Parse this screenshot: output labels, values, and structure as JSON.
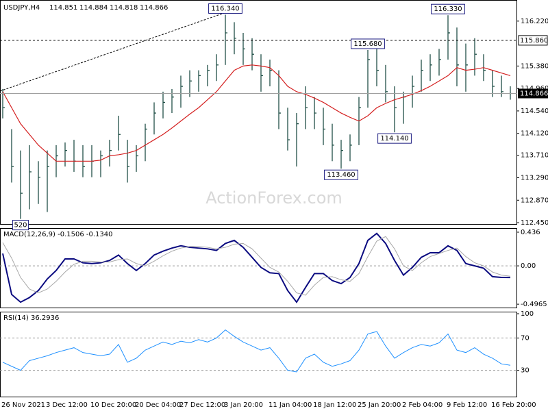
{
  "watermark": "ActionForex.com",
  "chart_data": [
    {
      "type": "hlc",
      "title": "USDJPY,H4",
      "header_values": [
        114.851,
        114.884,
        114.818,
        114.866
      ],
      "color": "#1f4f46",
      "high": [
        114.95,
        114.2,
        113.8,
        113.9,
        113.6,
        113.8,
        113.9,
        113.95,
        114.0,
        113.9,
        113.9,
        113.8,
        114.0,
        114.45,
        114.0,
        113.9,
        114.3,
        114.7,
        114.9,
        114.95,
        115.2,
        115.3,
        115.3,
        115.4,
        115.6,
        116.34,
        116.2,
        116.0,
        115.9,
        115.6,
        115.5,
        115.3,
        114.6,
        114.5,
        115.0,
        114.8,
        114.6,
        114.3,
        114.0,
        114.1,
        114.8,
        115.68,
        115.7,
        115.4,
        115.0,
        114.9,
        115.2,
        115.5,
        115.6,
        115.7,
        116.33,
        116.1,
        115.8,
        115.9,
        115.6,
        115.3,
        115.2,
        115.0
      ],
      "low": [
        114.4,
        113.2,
        112.52,
        112.7,
        112.8,
        112.65,
        113.3,
        113.5,
        113.4,
        113.3,
        113.3,
        113.3,
        113.5,
        113.8,
        113.2,
        113.4,
        113.6,
        114.1,
        114.4,
        114.5,
        114.6,
        114.8,
        114.9,
        115.0,
        115.1,
        115.4,
        115.6,
        115.4,
        115.3,
        114.9,
        115.0,
        114.2,
        113.8,
        113.5,
        114.2,
        114.2,
        113.9,
        113.6,
        113.46,
        113.6,
        113.9,
        114.6,
        115.0,
        114.7,
        114.14,
        114.3,
        114.6,
        114.9,
        115.1,
        115.2,
        115.5,
        115.0,
        114.9,
        115.2,
        115.1,
        114.8,
        114.8,
        114.75
      ],
      "close": [
        114.6,
        113.5,
        113.0,
        113.4,
        113.3,
        113.5,
        113.7,
        113.8,
        113.6,
        113.5,
        113.6,
        113.7,
        113.8,
        114.1,
        113.5,
        113.7,
        114.2,
        114.5,
        114.7,
        114.8,
        115.0,
        115.1,
        115.2,
        115.3,
        115.4,
        116.0,
        115.9,
        115.7,
        115.6,
        115.2,
        115.3,
        114.5,
        114.0,
        114.3,
        114.6,
        114.5,
        114.2,
        113.9,
        113.8,
        113.9,
        114.6,
        115.5,
        115.3,
        114.9,
        114.6,
        114.8,
        115.0,
        115.3,
        115.4,
        115.5,
        116.0,
        115.4,
        115.4,
        115.6,
        115.3,
        115.0,
        114.9,
        114.866
      ],
      "ma": {
        "color": "#d42020",
        "values": [
          114.9,
          114.6,
          114.3,
          114.1,
          113.9,
          113.75,
          113.6,
          113.6,
          113.6,
          113.6,
          113.6,
          113.62,
          113.7,
          113.72,
          113.75,
          113.8,
          113.9,
          114.0,
          114.1,
          114.22,
          114.35,
          114.48,
          114.6,
          114.75,
          114.9,
          115.1,
          115.3,
          115.38,
          115.4,
          115.38,
          115.35,
          115.2,
          115.0,
          114.9,
          114.85,
          114.78,
          114.7,
          114.6,
          114.5,
          114.42,
          114.35,
          114.45,
          114.6,
          114.68,
          114.75,
          114.8,
          114.85,
          114.92,
          115.0,
          115.1,
          115.2,
          115.35,
          115.3,
          115.32,
          115.35,
          115.3,
          115.25,
          115.2
        ]
      },
      "annotations": [
        {
          "value": 116.34,
          "label": "116.340"
        },
        {
          "value": 115.68,
          "label": "115.680"
        },
        {
          "value": 116.33,
          "label": "116.330"
        },
        {
          "value": 114.14,
          "label": "114.140"
        },
        {
          "value": 113.46,
          "label": "113.460"
        },
        {
          "value": 112.52,
          "label": "520"
        }
      ],
      "level": {
        "value": 115.86,
        "label": "115.860"
      },
      "current": {
        "value": 114.866,
        "label": "114.866"
      },
      "ylim": [
        112.425,
        116.602
      ],
      "yticks": [
        {
          "value": 116.22,
          "label": "116.220"
        },
        {
          "value": 115.38,
          "label": "115.380"
        },
        {
          "value": 114.96,
          "label": "114.960"
        },
        {
          "value": 114.54,
          "label": "114.540"
        },
        {
          "value": 114.12,
          "label": "114.120"
        },
        {
          "value": 113.71,
          "label": "113.710"
        },
        {
          "value": 113.29,
          "label": "113.290"
        },
        {
          "value": 112.87,
          "label": "112.870"
        },
        {
          "value": 112.45,
          "label": "112.450"
        }
      ]
    },
    {
      "type": "macd",
      "title": "MACD(12,26,9) -0.1506 -0.1340",
      "lines": [
        {
          "color": "#0a0a80",
          "values": [
            0.16,
            -0.37,
            -0.47,
            -0.41,
            -0.32,
            -0.17,
            -0.06,
            0.09,
            0.09,
            0.04,
            0.03,
            0.04,
            0.07,
            0.14,
            0.03,
            -0.06,
            0.03,
            0.14,
            0.19,
            0.23,
            0.26,
            0.24,
            0.23,
            0.22,
            0.2,
            0.29,
            0.33,
            0.24,
            0.11,
            -0.02,
            -0.09,
            -0.1,
            -0.32,
            -0.47,
            -0.28,
            -0.1,
            -0.1,
            -0.19,
            -0.23,
            -0.15,
            0.03,
            0.33,
            0.42,
            0.29,
            0.07,
            -0.12,
            -0.02,
            0.11,
            0.17,
            0.17,
            0.26,
            0.2,
            0.03,
            0,
            -0.03,
            -0.14,
            -0.15,
            -0.1506
          ]
        },
        {
          "color": "#a8a8a8",
          "values": [
            0.3,
            0.1,
            -0.15,
            -0.3,
            -0.35,
            -0.3,
            -0.2,
            -0.08,
            0.02,
            0.06,
            0.06,
            0.05,
            0.05,
            0.08,
            0.09,
            0.03,
            0.0,
            0.06,
            0.13,
            0.19,
            0.23,
            0.25,
            0.25,
            0.24,
            0.22,
            0.24,
            0.28,
            0.29,
            0.22,
            0.1,
            -0.02,
            -0.08,
            -0.2,
            -0.35,
            -0.38,
            -0.25,
            -0.15,
            -0.14,
            -0.18,
            -0.2,
            -0.1,
            0.12,
            0.32,
            0.38,
            0.22,
            0.0,
            -0.06,
            0.04,
            0.12,
            0.16,
            0.2,
            0.23,
            0.12,
            0.04,
            0.0,
            -0.08,
            -0.12,
            -0.134
          ]
        }
      ],
      "ylim": [
        -0.54,
        0.48
      ],
      "yticks": [
        0.436,
        {
          "value": 0,
          "label": "0.00"
        },
        -0.4965
      ],
      "levels": [
        0
      ]
    },
    {
      "type": "line",
      "title": "RSI(14) 36.2936",
      "color": "#1e90ff",
      "values": [
        40,
        35,
        30,
        42,
        45,
        48,
        52,
        55,
        58,
        52,
        50,
        48,
        50,
        62,
        40,
        45,
        55,
        60,
        65,
        62,
        66,
        64,
        68,
        65,
        70,
        80,
        72,
        65,
        60,
        55,
        58,
        45,
        30,
        28,
        45,
        50,
        40,
        35,
        38,
        42,
        55,
        75,
        78,
        60,
        45,
        52,
        58,
        62,
        60,
        64,
        75,
        55,
        52,
        58,
        50,
        45,
        38,
        36.2936
      ],
      "ylim": [
        -2.5,
        101.7
      ],
      "yticks": [
        100,
        70,
        30
      ],
      "levels": [
        70,
        30
      ],
      "categories": [
        "26 Nov 2021",
        null,
        null,
        null,
        null,
        "3 Dec 12:00",
        null,
        null,
        null,
        null,
        "10 Dec 20:00",
        null,
        null,
        null,
        null,
        "20 Dec 04:00",
        null,
        null,
        null,
        null,
        "27 Dec 12:00",
        null,
        null,
        null,
        null,
        "3 Jan 20:00",
        null,
        null,
        null,
        null,
        "11 Jan 04:00",
        null,
        null,
        null,
        null,
        "18 Jan 12:00",
        null,
        null,
        null,
        null,
        "25 Jan 20:00",
        null,
        null,
        null,
        null,
        "2 Feb 04:00",
        null,
        null,
        null,
        null,
        "9 Feb 12:00",
        null,
        null,
        null,
        null,
        "16 Feb 20:00",
        null,
        null
      ]
    }
  ]
}
